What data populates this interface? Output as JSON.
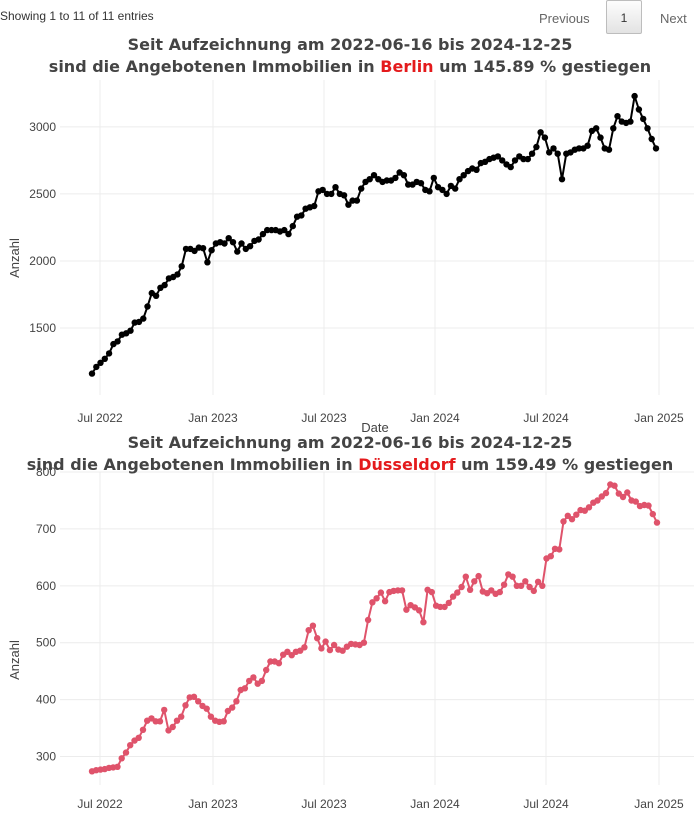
{
  "table_info": "Showing 1 to 11 of 11 entries",
  "pagination": {
    "previous": "Previous",
    "current_page": "1",
    "next": "Next"
  },
  "chart_data": [
    {
      "type": "line",
      "title_line1": "Seit Aufzeichnung am 2022-06-16 bis  2024-12-25",
      "title_line2_prefix": "sind die Angebotenen Immobilien in ",
      "city": "Berlin",
      "title_line2_suffix": " um 145.89 % gestiegen",
      "xlabel": "Date",
      "ylabel": "Anzahl",
      "x_ticks": [
        "Jul 2022",
        "Jan 2023",
        "Jul 2023",
        "Jan 2024",
        "Jul 2024",
        "Jan 2025"
      ],
      "y_ticks": [
        1500,
        2000,
        2500,
        3000
      ],
      "ylim": [
        1000,
        3350
      ],
      "color": "#000000",
      "city_color": "#e41a1c",
      "values": [
        1160,
        1210,
        1240,
        1270,
        1310,
        1380,
        1400,
        1450,
        1460,
        1480,
        1540,
        1545,
        1570,
        1660,
        1760,
        1740,
        1800,
        1820,
        1870,
        1880,
        1900,
        1960,
        2090,
        2090,
        2075,
        2100,
        2095,
        1990,
        2080,
        2130,
        2140,
        2130,
        2170,
        2140,
        2070,
        2130,
        2090,
        2110,
        2150,
        2160,
        2200,
        2230,
        2230,
        2230,
        2220,
        2230,
        2200,
        2260,
        2330,
        2340,
        2390,
        2400,
        2410,
        2520,
        2530,
        2500,
        2500,
        2550,
        2500,
        2490,
        2420,
        2450,
        2450,
        2540,
        2590,
        2610,
        2640,
        2610,
        2590,
        2600,
        2600,
        2620,
        2660,
        2640,
        2570,
        2570,
        2590,
        2580,
        2530,
        2520,
        2620,
        2550,
        2530,
        2500,
        2560,
        2540,
        2610,
        2640,
        2670,
        2690,
        2680,
        2730,
        2740,
        2760,
        2770,
        2780,
        2750,
        2720,
        2700,
        2750,
        2780,
        2760,
        2760,
        2800,
        2850,
        2960,
        2920,
        2810,
        2840,
        2800,
        2610,
        2800,
        2810,
        2830,
        2840,
        2840,
        2860,
        2970,
        2990,
        2920,
        2840,
        2830,
        2990,
        3080,
        3040,
        3030,
        3040,
        3230,
        3130,
        3060,
        2990,
        2910,
        2840
      ]
    },
    {
      "type": "line",
      "title_line1": "Seit Aufzeichnung am 2022-06-16 bis  2024-12-25",
      "title_line2_prefix": "sind die Angebotenen Immobilien in ",
      "city": "Düsseldorf",
      "title_line2_suffix": " um 159.49 % gestiegen",
      "xlabel": "",
      "ylabel": "Anzahl",
      "x_ticks": [
        "Jul 2022",
        "Jan 2023",
        "Jul 2023",
        "Jan 2024",
        "Jul 2024",
        "Jan 2025"
      ],
      "y_ticks": [
        300,
        400,
        500,
        600,
        700,
        800
      ],
      "ylim": [
        250,
        800
      ],
      "color": "#df536b",
      "city_color": "#e41a1c",
      "values": [
        274,
        276,
        277,
        278,
        280,
        281,
        282,
        297,
        307,
        320,
        328,
        333,
        347,
        363,
        367,
        362,
        362,
        382,
        346,
        352,
        363,
        370,
        390,
        404,
        405,
        397,
        389,
        384,
        370,
        363,
        361,
        362,
        380,
        386,
        397,
        417,
        420,
        433,
        439,
        428,
        433,
        452,
        467,
        467,
        464,
        479,
        484,
        478,
        484,
        486,
        492,
        522,
        530,
        508,
        490,
        502,
        487,
        496,
        488,
        486,
        493,
        498,
        497,
        496,
        500,
        540,
        571,
        578,
        588,
        573,
        589,
        591,
        592,
        592,
        558,
        566,
        562,
        557,
        536,
        593,
        589,
        565,
        563,
        563,
        570,
        581,
        588,
        598,
        616,
        593,
        608,
        617,
        590,
        587,
        592,
        586,
        589,
        602,
        620,
        616,
        600,
        600,
        608,
        598,
        591,
        607,
        600,
        648,
        652,
        665,
        664,
        713,
        723,
        717,
        725,
        733,
        732,
        738,
        746,
        750,
        757,
        763,
        778,
        776,
        762,
        756,
        764,
        750,
        748,
        740,
        742,
        741,
        726,
        711
      ]
    }
  ]
}
